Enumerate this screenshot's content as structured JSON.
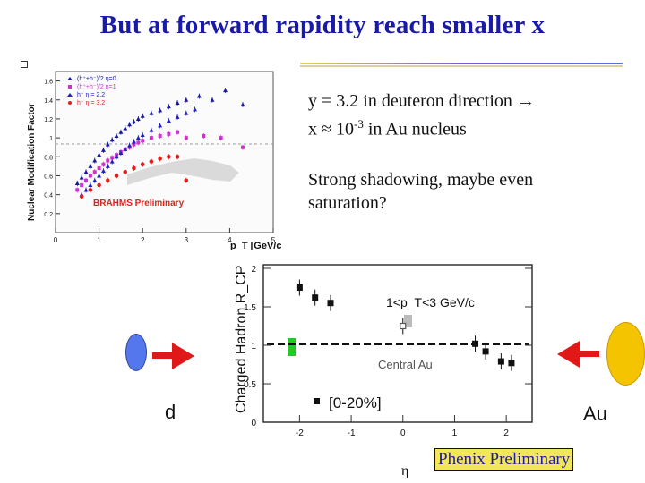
{
  "slide": {
    "title": "But at forward rapidity reach smaller x",
    "text1_line1": "y = 3.2 in deuteron direction →",
    "text1_line2": "x ≈ 10",
    "text1_exp": "-3",
    "text1_line2_tail": " in Au nucleus",
    "text2_line1": "Strong shadowing, maybe even",
    "text2_line2": "saturation?",
    "label_d": "d",
    "label_au": "Au",
    "phenix_label": "Phenix Preliminary",
    "colors": {
      "title": "#1a1aa8",
      "deuteron": "#5577ee",
      "gold": "#f5c400",
      "arrow": "#e01818",
      "phenix_bg": "#f2e65a"
    }
  },
  "chart_data": [
    {
      "type": "scatter",
      "title": "",
      "xlabel": "p_T [GeV/c]",
      "ylabel": "Nuclear Modification Factor",
      "xlim": [
        0,
        5
      ],
      "ylim": [
        0,
        1.7
      ],
      "xticks": [
        "0",
        "1",
        "2",
        "3",
        "4",
        "5"
      ],
      "yticks": [
        "0.2",
        "0.4",
        "0.6",
        "0.8",
        "1",
        "1.2",
        "1.4",
        "1.6"
      ],
      "annotation": "BRAHMS Preliminary",
      "legend": {
        "placement": "top-left",
        "entries": [
          "(h⁺+h⁻)/2 η=0",
          "(h⁺+h⁻)/2 η=1",
          "h⁻ η = 2.2",
          "h⁻ η = 3.2"
        ]
      },
      "series": [
        {
          "name": "(h⁺+h⁻)/2 η=0",
          "color": "#1a1a99",
          "x": [
            0.5,
            0.6,
            0.7,
            0.8,
            0.9,
            1.0,
            1.1,
            1.2,
            1.3,
            1.4,
            1.5,
            1.6,
            1.7,
            1.8,
            1.9,
            2.0,
            2.2,
            2.4,
            2.6,
            2.8,
            3.0,
            3.3,
            3.6,
            3.9,
            4.3
          ],
          "y": [
            0.52,
            0.58,
            0.64,
            0.7,
            0.76,
            0.82,
            0.87,
            0.93,
            0.98,
            1.02,
            1.06,
            1.1,
            1.14,
            1.17,
            1.2,
            1.23,
            1.26,
            1.29,
            1.33,
            1.37,
            1.4,
            1.44,
            1.4,
            1.5,
            1.35
          ]
        },
        {
          "name": "(h⁺+h⁻)/2 η=1",
          "color": "#cc33cc",
          "x": [
            0.5,
            0.6,
            0.7,
            0.8,
            0.9,
            1.0,
            1.1,
            1.2,
            1.3,
            1.4,
            1.5,
            1.6,
            1.7,
            1.8,
            1.9,
            2.0,
            2.2,
            2.4,
            2.6,
            2.8,
            3.0,
            3.4,
            3.8,
            4.3
          ],
          "y": [
            0.45,
            0.5,
            0.55,
            0.6,
            0.64,
            0.68,
            0.72,
            0.76,
            0.79,
            0.82,
            0.85,
            0.88,
            0.9,
            0.93,
            0.95,
            0.97,
            1.0,
            1.02,
            1.04,
            1.06,
            1.0,
            1.02,
            1.0,
            0.9
          ]
        },
        {
          "name": "h⁻ η = 2.2",
          "color": "#2222bb",
          "x": [
            0.6,
            0.7,
            0.8,
            0.9,
            1.0,
            1.1,
            1.2,
            1.3,
            1.4,
            1.5,
            1.6,
            1.7,
            1.8,
            1.9,
            2.0,
            2.2,
            2.4,
            2.6,
            2.8,
            3.0,
            3.2
          ],
          "y": [
            0.4,
            0.45,
            0.5,
            0.55,
            0.6,
            0.65,
            0.7,
            0.75,
            0.8,
            0.84,
            0.88,
            0.92,
            0.96,
            1.0,
            1.03,
            1.08,
            1.13,
            1.18,
            1.22,
            1.26,
            1.3
          ]
        },
        {
          "name": "h⁻ η = 3.2",
          "color": "#dd2222",
          "x": [
            0.6,
            0.8,
            1.0,
            1.2,
            1.4,
            1.6,
            1.8,
            2.0,
            2.2,
            2.4,
            2.6,
            2.8,
            3.0
          ],
          "y": [
            0.38,
            0.45,
            0.5,
            0.55,
            0.6,
            0.64,
            0.68,
            0.72,
            0.75,
            0.78,
            0.8,
            0.8,
            0.55
          ]
        }
      ]
    },
    {
      "type": "scatter",
      "title": "",
      "xlabel": "η",
      "ylabel": "Charged Hadron R_CP",
      "xlim": [
        -2.7,
        2.5
      ],
      "ylim": [
        0,
        2
      ],
      "xticks": [
        "-2",
        "-1",
        "0",
        "1",
        "2"
      ],
      "yticks": [
        "0",
        "0.5",
        "1",
        "1.5",
        "2"
      ],
      "annotations": [
        "1<p_T<3 GeV/c",
        "Central Au"
      ],
      "legend": {
        "placement": "bottom-left",
        "entries": [
          "[0-20%]"
        ]
      },
      "reference_line": 1,
      "series": [
        {
          "name": "[0-20%]",
          "color": "#111111",
          "x": [
            -2.0,
            -1.7,
            -1.4,
            1.4,
            1.6,
            1.9,
            2.1
          ],
          "y": [
            1.75,
            1.62,
            1.55,
            1.02,
            0.92,
            0.79,
            0.77
          ]
        },
        {
          "name": "",
          "color": "#555555",
          "x": [
            0.0
          ],
          "y": [
            1.25
          ]
        }
      ]
    }
  ]
}
